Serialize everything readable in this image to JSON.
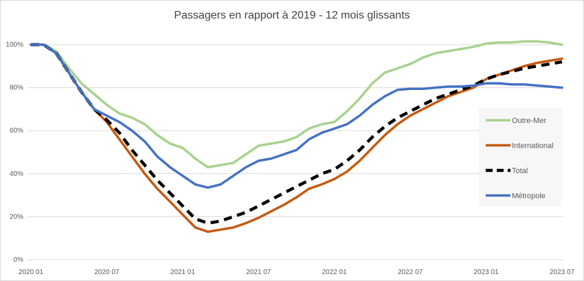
{
  "chart_data": {
    "type": "line",
    "title": "Passagers en rapport à 2019 - 12 mois glissants",
    "xlabel": "",
    "ylabel": "",
    "ylim": [
      0,
      100
    ],
    "yticks": [
      "0%",
      "20%",
      "40%",
      "60%",
      "80%",
      "100%"
    ],
    "xtick_labels": [
      "2020 01",
      "2020 07",
      "2021 01",
      "2021 07",
      "2022 01",
      "2022 07",
      "2023 01",
      "2023 07"
    ],
    "x_months": 43,
    "grid": true,
    "legend_position": "right",
    "series": [
      {
        "name": "Outre-Mer",
        "color": "#a9d18e",
        "dash": false,
        "values": [
          100,
          100,
          97,
          89,
          82,
          77,
          72,
          68,
          66,
          63,
          58,
          54,
          52,
          47,
          43,
          44,
          45,
          49,
          53,
          54,
          55,
          57,
          61,
          63,
          64,
          69,
          75,
          82,
          87,
          89,
          91,
          94,
          96,
          97,
          98,
          99,
          100.5,
          101,
          101,
          101.5,
          101.5,
          101,
          100
        ]
      },
      {
        "name": "International",
        "color": "#c55a11",
        "dash": false,
        "values": [
          100,
          100,
          96,
          87,
          78,
          70,
          64,
          56,
          48,
          40,
          33,
          27,
          21,
          15,
          13,
          14,
          15,
          17,
          19.5,
          22.5,
          25.5,
          29,
          33,
          35,
          37.5,
          41,
          46,
          52,
          58,
          63,
          67,
          70,
          73,
          76,
          78,
          80,
          84,
          86,
          88,
          90,
          91.5,
          92.5,
          93.5
        ]
      },
      {
        "name": "Total",
        "color": "#000000",
        "dash": true,
        "values": [
          100,
          100,
          96,
          87,
          78,
          70,
          65,
          59,
          51,
          44,
          37,
          31,
          25,
          19,
          17,
          18,
          20,
          22,
          25,
          28,
          31,
          34,
          37,
          40,
          42,
          46,
          51,
          57,
          62,
          66,
          69,
          72,
          75,
          77,
          79,
          81,
          84,
          86,
          87.5,
          89,
          90,
          91,
          92
        ]
      },
      {
        "name": "Métropole",
        "color": "#4472c4",
        "dash": false,
        "values": [
          100,
          100,
          96,
          87,
          78,
          70,
          67,
          64,
          60,
          55,
          48,
          43,
          39,
          35,
          33.5,
          35,
          39,
          43,
          46,
          47,
          49,
          51,
          56,
          59,
          61,
          63,
          67,
          72,
          76,
          79,
          79.5,
          79.5,
          80,
          80.5,
          80.5,
          81,
          82,
          82,
          81.5,
          81.5,
          81,
          80.5,
          80
        ]
      }
    ]
  }
}
